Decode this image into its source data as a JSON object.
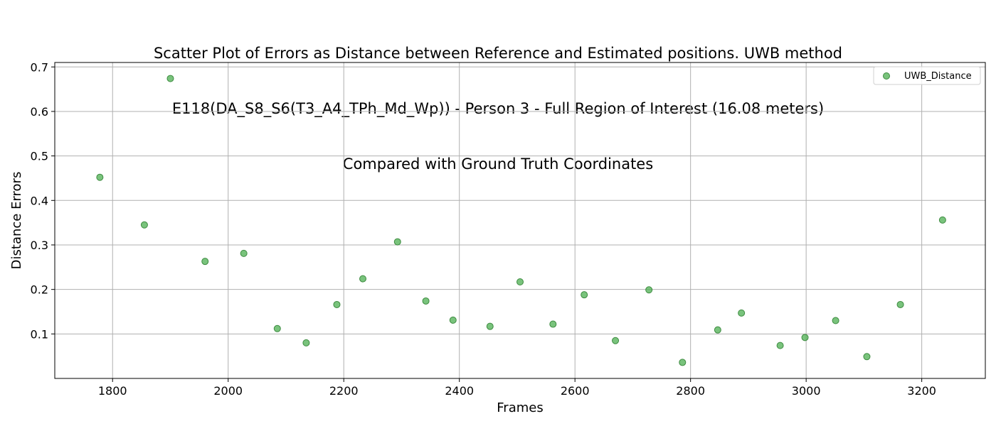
{
  "chart_data": {
    "type": "scatter",
    "title_lines": [
      "Scatter Plot of Errors as Distance between Reference and Estimated positions. UWB method",
      "E118(DA_S8_S6(T3_A4_TPh_Md_Wp)) - Person 3 - Full Region of Interest (16.08 meters)",
      "Compared with Ground Truth Coordinates"
    ],
    "xlabel": "Frames",
    "ylabel": "Distance Errors",
    "xlim": [
      1700,
      3310
    ],
    "ylim": [
      0.0,
      0.71
    ],
    "xticks": [
      1800,
      2000,
      2200,
      2400,
      2600,
      2800,
      3000,
      3200
    ],
    "yticks": [
      0.1,
      0.2,
      0.3,
      0.4,
      0.5,
      0.6,
      0.7
    ],
    "xtick_labels": [
      "1800",
      "2000",
      "2200",
      "2400",
      "2600",
      "2800",
      "3000",
      "3200"
    ],
    "ytick_labels": [
      "0.1",
      "0.2",
      "0.3",
      "0.4",
      "0.5",
      "0.6",
      "0.7"
    ],
    "grid": true,
    "legend_position": "top-right",
    "series": [
      {
        "name": "UWB_Distance",
        "color": "#4caf50",
        "x": [
          1778,
          1855,
          1900,
          1960,
          2027,
          2085,
          2135,
          2188,
          2233,
          2293,
          2342,
          2389,
          2453,
          2505,
          2562,
          2616,
          2670,
          2728,
          2786,
          2847,
          2888,
          2955,
          2998,
          3051,
          3105,
          3163,
          3236
        ],
        "y": [
          0.452,
          0.345,
          0.674,
          0.263,
          0.281,
          0.112,
          0.08,
          0.166,
          0.224,
          0.307,
          0.174,
          0.131,
          0.117,
          0.217,
          0.122,
          0.188,
          0.085,
          0.199,
          0.036,
          0.109,
          0.147,
          0.074,
          0.092,
          0.13,
          0.049,
          0.166,
          0.356
        ]
      }
    ]
  }
}
